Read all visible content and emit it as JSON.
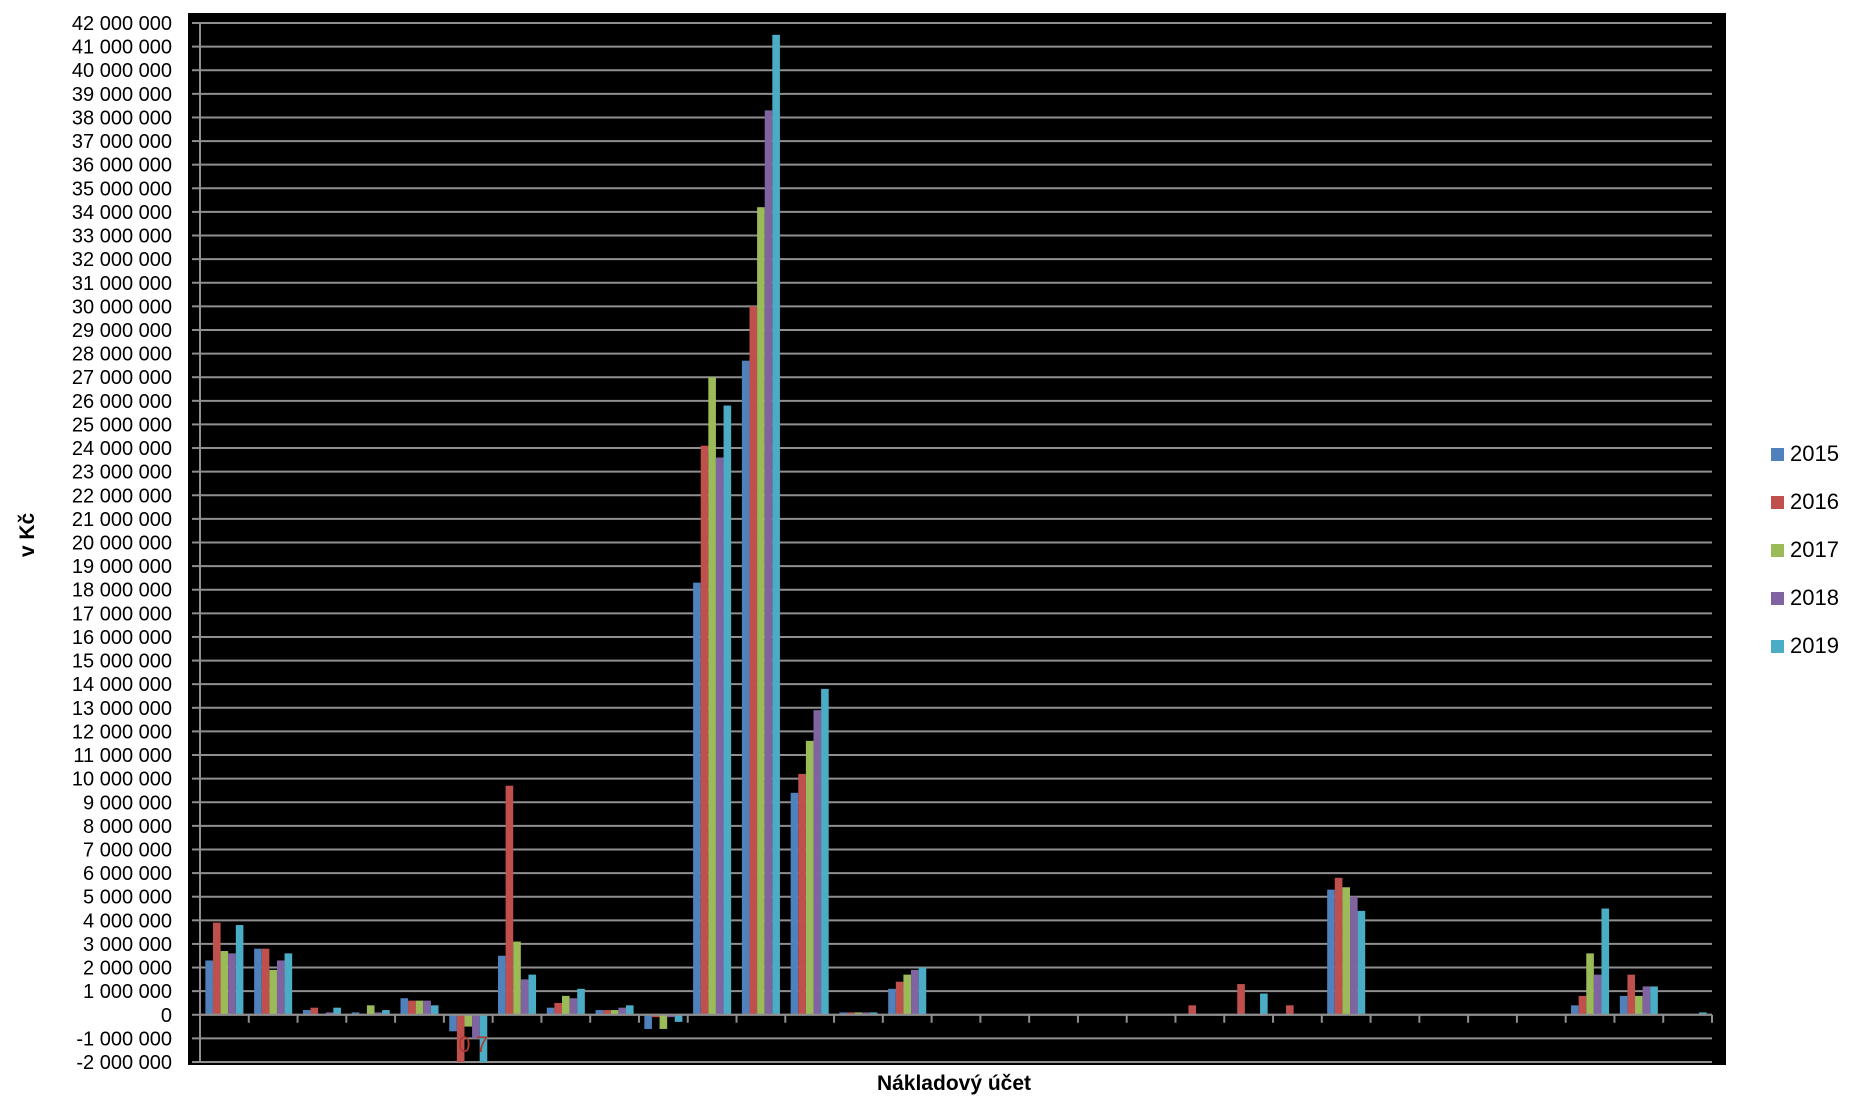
{
  "chart_data": {
    "type": "bar",
    "title": "",
    "xlabel": "Nákladový účet",
    "ylabel": "v Kč",
    "ylim": [
      -2000000,
      42000000
    ],
    "y_tick_step": 1000000,
    "grid": true,
    "legend_position": "right",
    "background": "#000000",
    "categories": [
      "",
      "",
      "",
      "",
      "",
      "",
      "",
      "",
      "",
      "",
      "",
      "",
      "",
      "",
      "",
      "",
      "",
      "",
      "",
      "",
      "",
      "",
      "",
      "",
      "",
      "",
      "",
      "",
      "",
      "",
      ""
    ],
    "series": [
      {
        "name": "2015",
        "color": "#4f81bd",
        "values": [
          2300000,
          2800000,
          200000,
          100000,
          700000,
          -700000,
          2500000,
          300000,
          200000,
          -600000,
          18300000,
          27700000,
          9400000,
          100000,
          1100000,
          0,
          0,
          0,
          0,
          0,
          0,
          0,
          0,
          5300000,
          0,
          0,
          0,
          0,
          400000,
          800000,
          0
        ]
      },
      {
        "name": "2016",
        "color": "#c0504d",
        "values": [
          3900000,
          2800000,
          300000,
          0,
          600000,
          -2000000,
          9700000,
          500000,
          200000,
          -100000,
          24100000,
          30000000,
          10200000,
          100000,
          1400000,
          0,
          0,
          0,
          0,
          0,
          400000,
          1300000,
          400000,
          5800000,
          0,
          0,
          0,
          0,
          800000,
          1700000,
          0
        ]
      },
      {
        "name": "2017",
        "color": "#9bbb59",
        "values": [
          2700000,
          1900000,
          0,
          400000,
          600000,
          -500000,
          3100000,
          800000,
          200000,
          -600000,
          27000000,
          34200000,
          11600000,
          100000,
          1700000,
          0,
          0,
          0,
          0,
          0,
          0,
          0,
          0,
          5400000,
          0,
          0,
          0,
          0,
          2600000,
          800000,
          0
        ]
      },
      {
        "name": "2018",
        "color": "#8064a2",
        "values": [
          2600000,
          2300000,
          100000,
          100000,
          600000,
          -1000000,
          1500000,
          700000,
          300000,
          -100000,
          23600000,
          38300000,
          12900000,
          100000,
          1900000,
          0,
          0,
          0,
          0,
          0,
          0,
          0,
          0,
          5000000,
          0,
          0,
          0,
          0,
          1700000,
          1200000,
          0
        ]
      },
      {
        "name": "2019",
        "color": "#4bacc6",
        "values": [
          3800000,
          2600000,
          300000,
          200000,
          400000,
          -2000000,
          1700000,
          1100000,
          400000,
          -300000,
          25800000,
          41500000,
          13800000,
          100000,
          2000000,
          0,
          0,
          0,
          0,
          0,
          0,
          900000,
          0,
          4400000,
          0,
          0,
          0,
          0,
          4500000,
          1200000,
          100000
        ]
      }
    ],
    "stray_labels": [
      "0",
      "7"
    ]
  }
}
